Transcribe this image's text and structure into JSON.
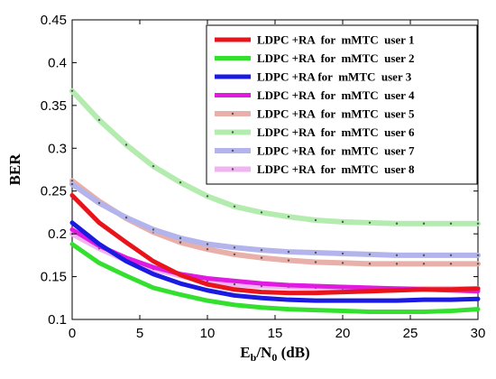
{
  "chart_data": {
    "type": "line",
    "title": "",
    "xlabel_main": "E",
    "xlabel_sub1": "b",
    "xlabel_mid": "/N",
    "xlabel_sub2": "0",
    "xlabel_unit": " (dB)",
    "ylabel": "BER",
    "xlim": [
      0,
      30
    ],
    "ylim": [
      0.1,
      0.45
    ],
    "xticks": [
      "0",
      "5",
      "10",
      "15",
      "20",
      "25",
      "30"
    ],
    "yticks": [
      "0.1",
      "0.15",
      "0.2",
      "0.25",
      "0.3",
      "0.35",
      "0.4",
      "0.45"
    ],
    "grid": false,
    "legend_position": "top-right",
    "x": [
      0,
      2,
      4,
      6,
      8,
      10,
      12,
      14,
      16,
      18,
      20,
      22,
      24,
      26,
      28,
      30
    ],
    "series": [
      {
        "name": "LDPC +RA  for  mMTC  user 1",
        "color": "#e8141b",
        "style": "solid",
        "values": [
          0.245,
          0.213,
          0.19,
          0.168,
          0.152,
          0.141,
          0.135,
          0.132,
          0.131,
          0.131,
          0.132,
          0.133,
          0.134,
          0.135,
          0.135,
          0.136
        ]
      },
      {
        "name": "LDPC +RA  for  mMTC  user 2",
        "color": "#33e02e",
        "style": "solid",
        "values": [
          0.188,
          0.166,
          0.151,
          0.137,
          0.129,
          0.122,
          0.117,
          0.114,
          0.112,
          0.111,
          0.11,
          0.109,
          0.109,
          0.109,
          0.11,
          0.112
        ]
      },
      {
        "name": "LDPC +RA for  mMTC  user 3",
        "color": "#1a1ae0",
        "style": "solid",
        "values": [
          0.213,
          0.188,
          0.168,
          0.153,
          0.142,
          0.134,
          0.128,
          0.125,
          0.123,
          0.122,
          0.122,
          0.122,
          0.122,
          0.123,
          0.123,
          0.124
        ]
      },
      {
        "name": "LDPC +RA  for  mMTC  user 4",
        "color": "#e01ae0",
        "style": "solid",
        "values": [
          0.205,
          0.186,
          0.172,
          0.161,
          0.153,
          0.148,
          0.145,
          0.142,
          0.14,
          0.139,
          0.138,
          0.137,
          0.136,
          0.135,
          0.134,
          0.133
        ]
      },
      {
        "name": "LDPC +RA  for  mMTC  user 5",
        "color": "#e8b0a8",
        "style": "dotted",
        "values": [
          0.262,
          0.238,
          0.218,
          0.202,
          0.19,
          0.182,
          0.176,
          0.172,
          0.169,
          0.167,
          0.166,
          0.165,
          0.165,
          0.165,
          0.165,
          0.165
        ]
      },
      {
        "name": "LDPC +RA  for  mMTC  user 6",
        "color": "#b4ecb0",
        "style": "dotted",
        "values": [
          0.367,
          0.333,
          0.304,
          0.279,
          0.26,
          0.244,
          0.232,
          0.225,
          0.22,
          0.216,
          0.214,
          0.213,
          0.212,
          0.212,
          0.212,
          0.212
        ]
      },
      {
        "name": "LDPC +RA  for  mMTC  user 7",
        "color": "#b4b4ec",
        "style": "dotted",
        "values": [
          0.258,
          0.236,
          0.219,
          0.205,
          0.195,
          0.188,
          0.184,
          0.181,
          0.179,
          0.178,
          0.177,
          0.176,
          0.175,
          0.175,
          0.175,
          0.175
        ]
      },
      {
        "name": "LDPC +RA  for  mMTC  user 8",
        "color": "#f0b4f0",
        "style": "dotted",
        "values": [
          0.2,
          0.183,
          0.169,
          0.159,
          0.151,
          0.145,
          0.141,
          0.139,
          0.138,
          0.137,
          0.136,
          0.136,
          0.136,
          0.136,
          0.136,
          0.136
        ]
      }
    ]
  }
}
